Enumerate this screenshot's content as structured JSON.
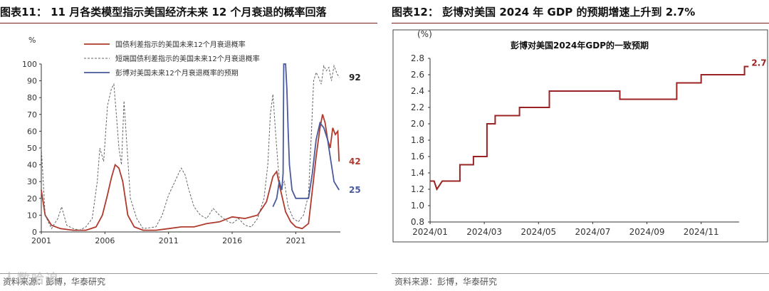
{
  "left": {
    "fig_num": "图表11：",
    "fig_title": "11 月各类模型指示美国经济未来 12 个月衰退的概率回落",
    "source": "资料来源：彭博，华泰研究"
  },
  "right": {
    "fig_num": "图表12：",
    "fig_title": "彭博对美国 2024 年 GDP 的预期增速上升到 2.7%",
    "source": "资料来源：彭博，华泰研究"
  },
  "watermark": "人数哈追",
  "chart_data": [
    {
      "type": "line",
      "title": "",
      "ylabel": "%",
      "xlabel": "",
      "ylim": [
        0,
        100
      ],
      "yticks": [
        "0",
        "10",
        "20",
        "30",
        "40",
        "50",
        "60",
        "70",
        "80",
        "90",
        "100"
      ],
      "xlim": [
        2001,
        2024.5
      ],
      "xticks": [
        "2001",
        "2006",
        "2011",
        "2016",
        "2021"
      ],
      "legend_position": "top-left",
      "series": [
        {
          "name": "国债利差指示的美国未来12个月衰退概率",
          "style": "solid",
          "color": "#b03a2e",
          "end_label": "42",
          "points": [
            [
              2001,
              25
            ],
            [
              2001.3,
              10
            ],
            [
              2001.8,
              4
            ],
            [
              2002.5,
              2
            ],
            [
              2003.5,
              1
            ],
            [
              2004.5,
              1
            ],
            [
              2005.3,
              3
            ],
            [
              2005.8,
              10
            ],
            [
              2006.2,
              22
            ],
            [
              2006.5,
              32
            ],
            [
              2006.8,
              40
            ],
            [
              2007.1,
              38
            ],
            [
              2007.4,
              30
            ],
            [
              2007.8,
              10
            ],
            [
              2008.3,
              3
            ],
            [
              2009,
              1
            ],
            [
              2010,
              1
            ],
            [
              2011,
              2
            ],
            [
              2012,
              3
            ],
            [
              2013,
              3
            ],
            [
              2014,
              5
            ],
            [
              2015,
              6
            ],
            [
              2016,
              9
            ],
            [
              2017,
              8
            ],
            [
              2018,
              10
            ],
            [
              2018.7,
              18
            ],
            [
              2019.2,
              33
            ],
            [
              2019.5,
              36
            ],
            [
              2019.8,
              25
            ],
            [
              2020.2,
              12
            ],
            [
              2020.6,
              6
            ],
            [
              2021,
              3
            ],
            [
              2021.5,
              2
            ],
            [
              2022,
              5
            ],
            [
              2022.3,
              25
            ],
            [
              2022.6,
              45
            ],
            [
              2022.9,
              62
            ],
            [
              2023.1,
              70
            ],
            [
              2023.3,
              65
            ],
            [
              2023.5,
              55
            ],
            [
              2023.7,
              50
            ],
            [
              2023.9,
              62
            ],
            [
              2024.1,
              58
            ],
            [
              2024.3,
              60
            ],
            [
              2024.4,
              42
            ]
          ]
        },
        {
          "name": "短端国债利差指示的美国未来12个月衰退概率",
          "style": "dashed",
          "color": "#666666",
          "end_label": "92",
          "points": [
            [
              2001,
              50
            ],
            [
              2001.3,
              10
            ],
            [
              2001.8,
              2
            ],
            [
              2002.3,
              8
            ],
            [
              2002.6,
              15
            ],
            [
              2003,
              4
            ],
            [
              2003.5,
              2
            ],
            [
              2004,
              1
            ],
            [
              2004.5,
              3
            ],
            [
              2005,
              8
            ],
            [
              2005.4,
              30
            ],
            [
              2005.6,
              50
            ],
            [
              2005.9,
              42
            ],
            [
              2006.2,
              75
            ],
            [
              2006.5,
              85
            ],
            [
              2006.7,
              88
            ],
            [
              2006.9,
              70
            ],
            [
              2007.1,
              50
            ],
            [
              2007.3,
              40
            ],
            [
              2007.5,
              78
            ],
            [
              2007.7,
              55
            ],
            [
              2008,
              20
            ],
            [
              2008.5,
              8
            ],
            [
              2009,
              2
            ],
            [
              2010,
              3
            ],
            [
              2010.5,
              10
            ],
            [
              2011,
              22
            ],
            [
              2011.5,
              30
            ],
            [
              2011.8,
              35
            ],
            [
              2012,
              38
            ],
            [
              2012.3,
              34
            ],
            [
              2012.6,
              25
            ],
            [
              2013,
              15
            ],
            [
              2013.5,
              10
            ],
            [
              2014,
              8
            ],
            [
              2014.5,
              14
            ],
            [
              2015,
              10
            ],
            [
              2015.5,
              7
            ],
            [
              2016,
              5
            ],
            [
              2016.5,
              8
            ],
            [
              2017,
              4
            ],
            [
              2017.5,
              3
            ],
            [
              2018,
              8
            ],
            [
              2018.5,
              20
            ],
            [
              2018.8,
              40
            ],
            [
              2019,
              70
            ],
            [
              2019.2,
              82
            ],
            [
              2019.4,
              60
            ],
            [
              2019.6,
              40
            ],
            [
              2019.8,
              25
            ],
            [
              2020.1,
              30
            ],
            [
              2020.4,
              15
            ],
            [
              2020.8,
              8
            ],
            [
              2021.2,
              6
            ],
            [
              2021.6,
              10
            ],
            [
              2022,
              22
            ],
            [
              2022.2,
              55
            ],
            [
              2022.4,
              90
            ],
            [
              2022.6,
              95
            ],
            [
              2022.8,
              92
            ],
            [
              2023,
              88
            ],
            [
              2023.2,
              99
            ],
            [
              2023.4,
              96
            ],
            [
              2023.6,
              98
            ],
            [
              2023.8,
              90
            ],
            [
              2024,
              99
            ],
            [
              2024.2,
              95
            ],
            [
              2024.4,
              92
            ]
          ]
        },
        {
          "name": "彭博对美国未来12个月衰退概率的预期",
          "style": "solid",
          "color": "#4a5a9c",
          "end_label": "25",
          "points": [
            [
              2019.2,
              15
            ],
            [
              2019.5,
              20
            ],
            [
              2019.7,
              30
            ],
            [
              2019.9,
              25
            ],
            [
              2020.0,
              35
            ],
            [
              2020.05,
              100
            ],
            [
              2020.2,
              100
            ],
            [
              2020.3,
              85
            ],
            [
              2020.4,
              60
            ],
            [
              2020.5,
              40
            ],
            [
              2020.7,
              25
            ],
            [
              2021.0,
              20
            ],
            [
              2022.0,
              20
            ],
            [
              2022.3,
              35
            ],
            [
              2022.6,
              55
            ],
            [
              2022.9,
              65
            ],
            [
              2023.2,
              62
            ],
            [
              2023.5,
              55
            ],
            [
              2023.8,
              40
            ],
            [
              2024.0,
              30
            ],
            [
              2024.4,
              25
            ]
          ]
        }
      ]
    },
    {
      "type": "line",
      "title": "彭博对美国2024年GDP的一致预期",
      "ylabel": "(%)",
      "xlabel": "",
      "ylim": [
        0.8,
        2.8
      ],
      "yticks": [
        "0.8",
        "1.0",
        "1.2",
        "1.4",
        "1.6",
        "1.8",
        "2.0",
        "2.2",
        "2.4",
        "2.6",
        "2.8"
      ],
      "xticks": [
        "2024/01",
        "2024/03",
        "2024/05",
        "2024/07",
        "2024/09",
        "2024/11"
      ],
      "xlim": [
        0,
        11.4
      ],
      "series": [
        {
          "name": "",
          "style": "step",
          "color": "#9b2323",
          "end_label": "2.7",
          "points": [
            [
              0,
              1.3
            ],
            [
              0.15,
              1.3
            ],
            [
              0.25,
              1.2
            ],
            [
              0.35,
              1.25
            ],
            [
              0.45,
              1.3
            ],
            [
              1.1,
              1.3
            ],
            [
              1.1,
              1.5
            ],
            [
              1.6,
              1.5
            ],
            [
              1.6,
              1.6
            ],
            [
              2.1,
              1.6
            ],
            [
              2.1,
              2.0
            ],
            [
              2.4,
              2.0
            ],
            [
              2.4,
              2.1
            ],
            [
              3.3,
              2.1
            ],
            [
              3.3,
              2.2
            ],
            [
              4.4,
              2.2
            ],
            [
              4.4,
              2.4
            ],
            [
              7.0,
              2.4
            ],
            [
              7.0,
              2.3
            ],
            [
              9.1,
              2.3
            ],
            [
              9.1,
              2.5
            ],
            [
              10.0,
              2.5
            ],
            [
              10.0,
              2.6
            ],
            [
              11.6,
              2.6
            ],
            [
              11.6,
              2.7
            ],
            [
              11.75,
              2.7
            ]
          ]
        }
      ]
    }
  ]
}
